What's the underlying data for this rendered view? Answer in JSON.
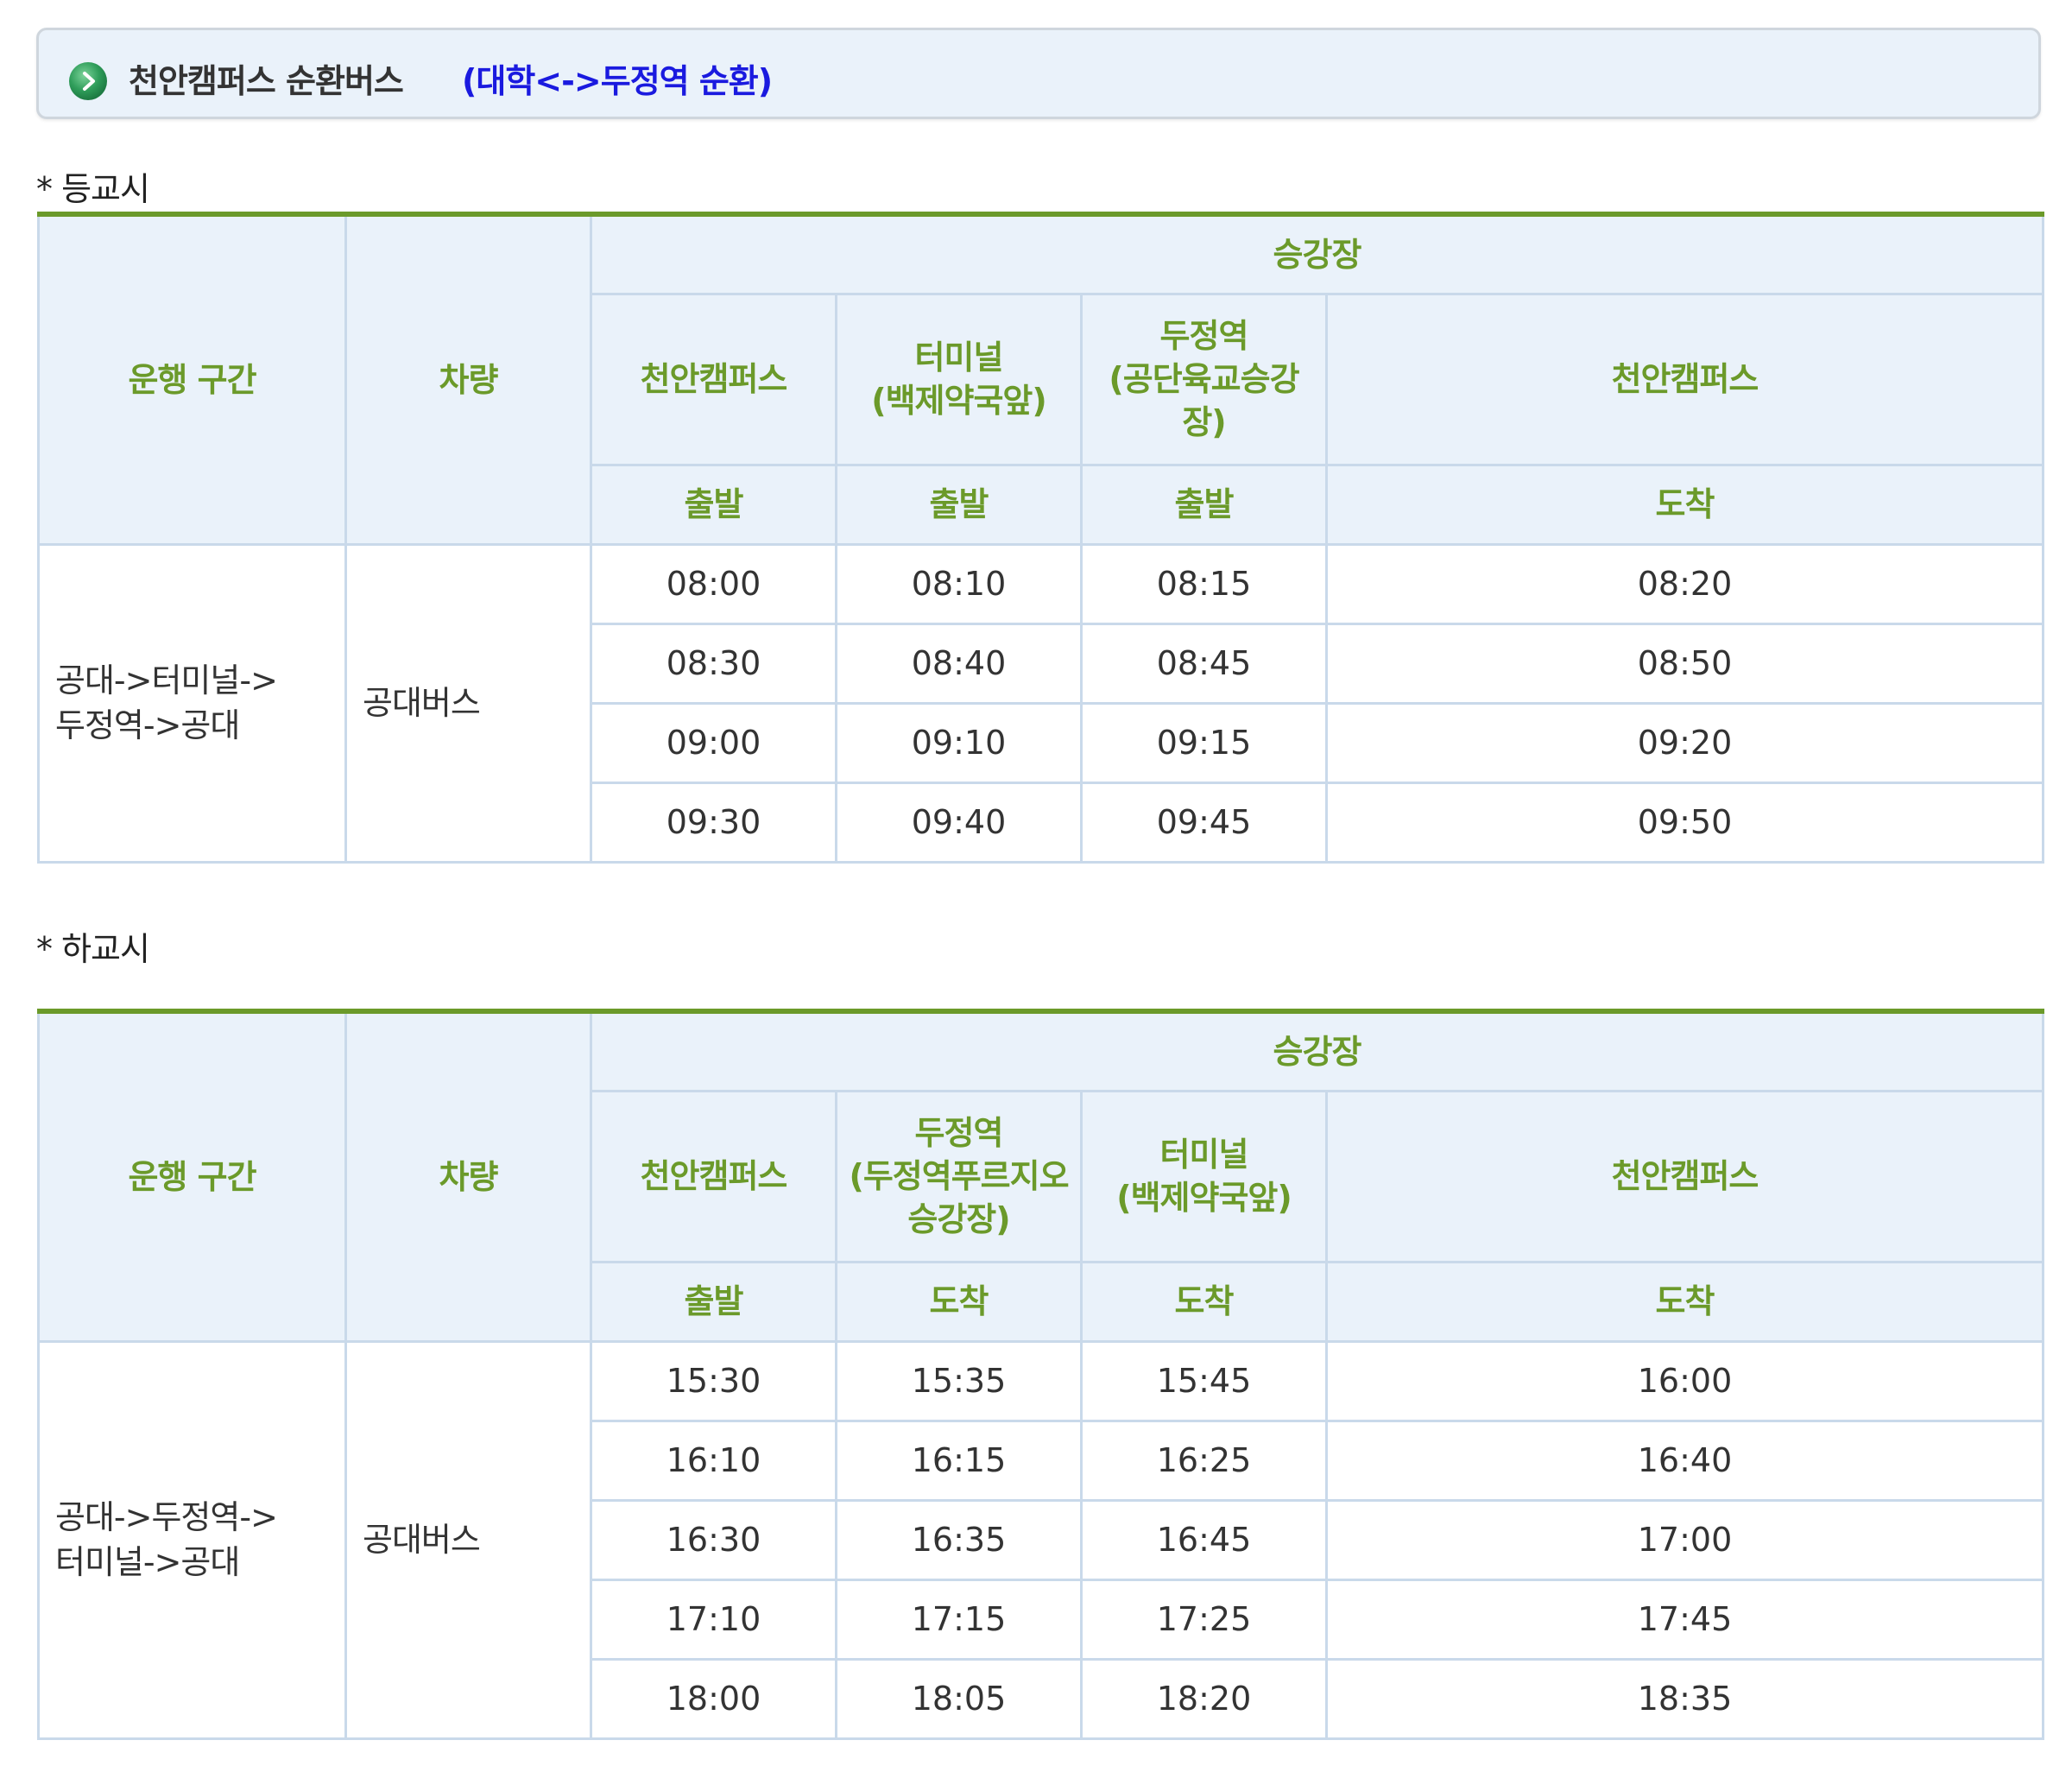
{
  "header": {
    "title": "천안캠퍼스 순환버스",
    "subtitle": "(대학<->두정역 순환)",
    "icon": "green-circle-arrow-icon"
  },
  "colors": {
    "header_text": "#6b9a2a",
    "subtitle_text": "#1a1adf",
    "header_bg": "#eaf2fa",
    "border": "#c9d9ea",
    "accent_top_border": "#6b9a2a"
  },
  "morning": {
    "label": "* 등교시",
    "head": {
      "route": "운행 구간",
      "vehicle": "차량",
      "stops_group": "승강장",
      "stops": [
        [
          "천안캠퍼스"
        ],
        [
          "터미널",
          "(백제약국앞)"
        ],
        [
          "두정역",
          "(공단육교승강",
          "장)"
        ],
        [
          "천안캠퍼스"
        ]
      ],
      "actions": [
        "출발",
        "출발",
        "출발",
        "도착"
      ]
    },
    "route": [
      "공대->터미널->",
      "두정역->공대"
    ],
    "vehicle": "공대버스",
    "rows": [
      [
        "08:00",
        "08:10",
        "08:15",
        "08:20"
      ],
      [
        "08:30",
        "08:40",
        "08:45",
        "08:50"
      ],
      [
        "09:00",
        "09:10",
        "09:15",
        "09:20"
      ],
      [
        "09:30",
        "09:40",
        "09:45",
        "09:50"
      ]
    ]
  },
  "afternoon": {
    "label": "* 하교시",
    "head": {
      "route": "운행 구간",
      "vehicle": "차량",
      "stops_group": "승강장",
      "stops": [
        [
          "천안캠퍼스"
        ],
        [
          "두정역",
          "(두정역푸르지오",
          "승강장)"
        ],
        [
          "터미널",
          "(백제약국앞)"
        ],
        [
          "천안캠퍼스"
        ]
      ],
      "actions": [
        "출발",
        "도착",
        "도착",
        "도착"
      ]
    },
    "route": [
      "공대->두정역->",
      "터미널->공대"
    ],
    "vehicle": "공대버스",
    "rows": [
      [
        "15:30",
        "15:35",
        "15:45",
        "16:00"
      ],
      [
        "16:10",
        "16:15",
        "16:25",
        "16:40"
      ],
      [
        "16:30",
        "16:35",
        "16:45",
        "17:00"
      ],
      [
        "17:10",
        "17:15",
        "17:25",
        "17:45"
      ],
      [
        "18:00",
        "18:05",
        "18:20",
        "18:35"
      ]
    ]
  }
}
